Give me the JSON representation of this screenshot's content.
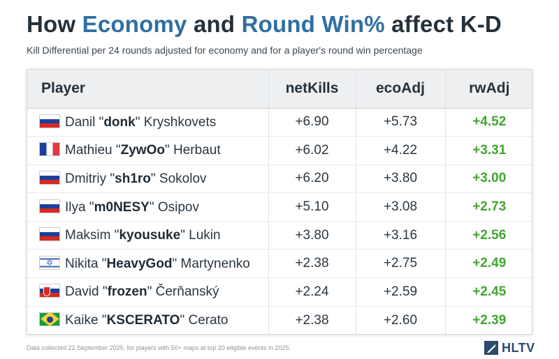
{
  "title": {
    "part1": "How ",
    "highlight1": "Economy",
    "part2": " and ",
    "highlight2": "Round Win%",
    "part3": " affect K-D"
  },
  "subtitle": "Kill Differential per 24 rounds adjusted for economy and for a player's round win percentage",
  "colors": {
    "accent": "#2f6fa3",
    "positive": "#43a52f",
    "brand": "#2d4b6b"
  },
  "chart_data": {
    "type": "table",
    "columns": [
      "Player",
      "netKills",
      "ecoAdj",
      "rwAdj"
    ],
    "rows": [
      {
        "flag": "russia-flag",
        "first": "Danil ",
        "nick": "donk",
        "last": " Kryshkovets",
        "netKills": "+6.90",
        "ecoAdj": "+5.73",
        "rwAdj": "+4.52"
      },
      {
        "flag": "france-flag",
        "first": "Mathieu ",
        "nick": "ZywOo",
        "last": " Herbaut",
        "netKills": "+6.02",
        "ecoAdj": "+4.22",
        "rwAdj": "+3.31"
      },
      {
        "flag": "russia-flag",
        "first": "Dmitriy ",
        "nick": "sh1ro",
        "last": " Sokolov",
        "netKills": "+6.20",
        "ecoAdj": "+3.80",
        "rwAdj": "+3.00"
      },
      {
        "flag": "russia-flag",
        "first": "Ilya ",
        "nick": "m0NESY",
        "last": " Osipov",
        "netKills": "+5.10",
        "ecoAdj": "+3.08",
        "rwAdj": "+2.73"
      },
      {
        "flag": "russia-flag",
        "first": "Maksim ",
        "nick": "kyousuke",
        "last": " Lukin",
        "netKills": "+3.80",
        "ecoAdj": "+3.16",
        "rwAdj": "+2.56"
      },
      {
        "flag": "israel-flag",
        "first": "Nikita ",
        "nick": "HeavyGod",
        "last": " Martynenko",
        "netKills": "+2.38",
        "ecoAdj": "+2.75",
        "rwAdj": "+2.49"
      },
      {
        "flag": "slovakia-flag",
        "first": "David ",
        "nick": "frozen",
        "last": " Čerňanský",
        "netKills": "+2.24",
        "ecoAdj": "+2.59",
        "rwAdj": "+2.45"
      },
      {
        "flag": "brazil-flag",
        "first": "Kaike ",
        "nick": "KSCERATO",
        "last": " Cerato",
        "netKills": "+2.38",
        "ecoAdj": "+2.60",
        "rwAdj": "+2.39"
      }
    ]
  },
  "footnote": "Data collected 22 September 2025, for players with 50+ maps at top 20 eligible events in 2025.",
  "logo": {
    "text": "HLTV",
    "icon": "hltv-logo-icon"
  }
}
